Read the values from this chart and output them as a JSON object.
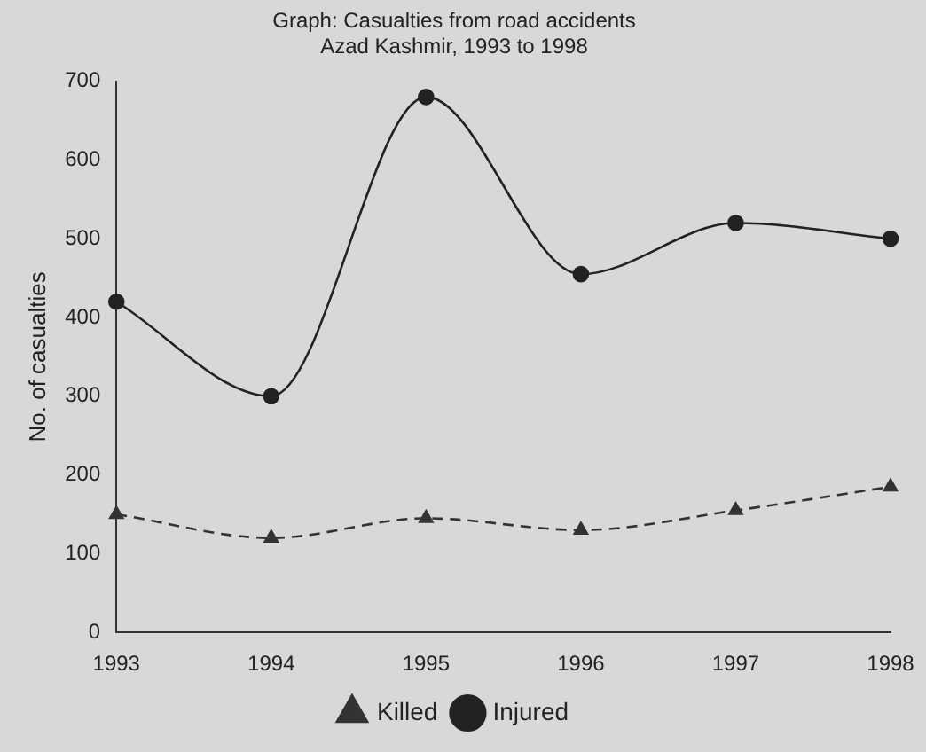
{
  "chart_data": {
    "type": "line",
    "title": "Graph: Casualties from road accidents",
    "subtitle": "Azad Kashmir, 1993 to 1998",
    "ylabel": "No. of casualties",
    "categories": [
      "1993",
      "1994",
      "1995",
      "1996",
      "1997",
      "1998"
    ],
    "ylim": [
      0,
      700
    ],
    "yticks": [
      0,
      100,
      200,
      300,
      400,
      500,
      600,
      700
    ],
    "grid": false,
    "legend": "bottom",
    "series": [
      {
        "name": "Killed",
        "color": "#333333",
        "values": [
          150,
          120,
          145,
          130,
          155,
          185
        ],
        "marker": "triangle",
        "line_style": "dashed"
      },
      {
        "name": "Injured",
        "color": "#222222",
        "values": [
          420,
          300,
          680,
          455,
          520,
          500
        ],
        "marker": "circle",
        "line_style": "solid"
      }
    ]
  }
}
